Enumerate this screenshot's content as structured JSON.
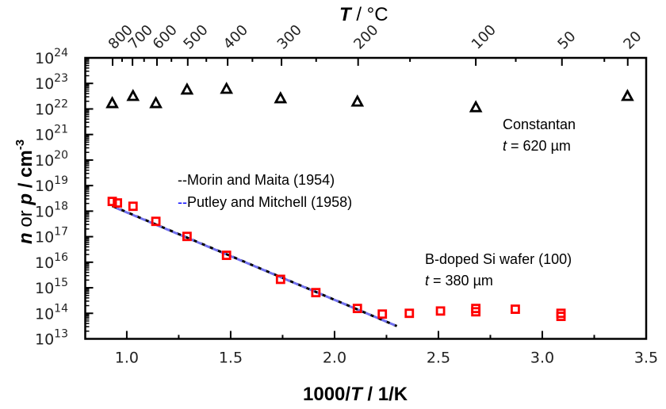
{
  "chart_data": {
    "type": "scatter",
    "title": "",
    "xlabel": "1000/T / 1/K",
    "xlabel_parts": {
      "pre": "1000/",
      "italic": "T",
      "post": " / 1/K"
    },
    "ylabel": "n or p / cm^-3",
    "ylabel_parts": {
      "n": "n",
      "or": " or ",
      "p": "p",
      "unit": " / cm",
      "exp": "-3"
    },
    "top_xlabel": "T / °C",
    "top_xlabel_parts": {
      "italic": "T",
      "post": " / °C"
    },
    "xlim": [
      0.8,
      3.5
    ],
    "ylim": [
      10000000000000.0,
      1e+24
    ],
    "yscale": "log",
    "grid": false,
    "x_ticks": [
      "1.0",
      "1.5",
      "2.0",
      "2.5",
      "3.0",
      "3.5"
    ],
    "x_tick_values": [
      1.0,
      1.5,
      2.0,
      2.5,
      3.0,
      3.5
    ],
    "y_tick_exponents": [
      13,
      14,
      15,
      16,
      17,
      18,
      19,
      20,
      21,
      22,
      23,
      24
    ],
    "y_tick_base": "10",
    "top_ticks_celsius": [
      800,
      700,
      600,
      500,
      400,
      300,
      200,
      100,
      50,
      20
    ],
    "top_tick_labels": [
      "800",
      "700",
      "600",
      "500",
      "400",
      "300",
      "200",
      "100",
      "50",
      "20"
    ],
    "series": [
      {
        "name": "Constantan",
        "marker": "triangle-open",
        "color": "#000000",
        "x": [
          0.93,
          1.03,
          1.14,
          1.29,
          1.48,
          1.74,
          2.11,
          2.68,
          3.41
        ],
        "log10_y": [
          22.23,
          22.51,
          22.23,
          22.76,
          22.79,
          22.42,
          22.29,
          22.07,
          22.51
        ]
      },
      {
        "name": "B-doped Si wafer (100)",
        "marker": "square-open",
        "color": "#ff0000",
        "x": [
          0.93,
          0.955,
          1.03,
          1.14,
          1.29,
          1.48,
          1.74,
          1.91,
          2.11,
          2.23,
          2.36,
          2.51,
          2.68,
          2.68,
          2.87,
          3.09,
          3.09
        ],
        "log10_y": [
          18.38,
          18.32,
          18.19,
          17.6,
          17.01,
          16.27,
          15.33,
          14.81,
          14.19,
          13.97,
          14.0,
          14.09,
          14.19,
          14.06,
          14.16,
          14.0,
          13.88
        ]
      },
      {
        "name": "Morin and Maita (1954)",
        "marker": "dashed-line",
        "color": "#000000",
        "x": [
          0.93,
          2.3
        ],
        "log10_y": [
          18.2,
          13.5
        ]
      },
      {
        "name": "Putley and Mitchell (1958)",
        "marker": "dashed-line",
        "color": "#7070ee",
        "x": [
          0.95,
          2.3
        ],
        "log10_y": [
          18.12,
          13.5
        ]
      }
    ],
    "legend": {
      "placement": "center-left",
      "entries": [
        {
          "prefix": "--",
          "prefix_color": "#000000",
          "label": "Morin and Maita (1954)"
        },
        {
          "prefix": "--",
          "prefix_color": "#0000ff",
          "label": "Putley and Mitchell (1958)"
        }
      ]
    },
    "annotations": [
      {
        "id": "constantan",
        "line1": "Constantan",
        "line2_italic": "t",
        "line2_rest": " = 620 µm"
      },
      {
        "id": "si",
        "line1": "B-doped Si wafer (100)",
        "line2_italic": "t",
        "line2_rest": " = 380 µm"
      }
    ]
  }
}
